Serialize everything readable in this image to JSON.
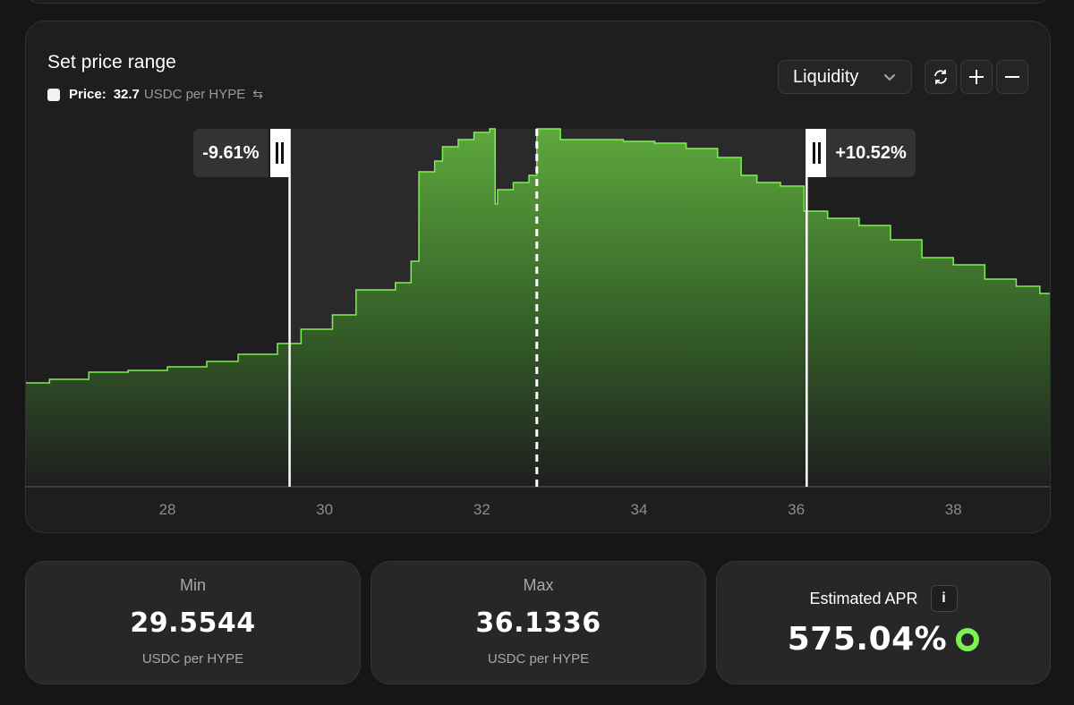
{
  "range_card": {
    "title": "Set price range",
    "price_label": "Price:",
    "price_value": "32.7",
    "price_unit": "USDC per HYPE",
    "swap_icon": "swap-arrows-icon",
    "view_select": "Liquidity",
    "buttons": {
      "reset_icon": "refresh-icon",
      "zoom_in_icon": "plus-icon",
      "zoom_out_icon": "minus-icon"
    },
    "min_pct": "-9.61%",
    "max_pct": "+10.52%",
    "current_price": 32.7,
    "min_price": 29.5544,
    "max_price": 36.1336
  },
  "chart_data": {
    "type": "area",
    "xlabel": "",
    "ylabel": "",
    "xlim": [
      26.2,
      39.25
    ],
    "ylim": [
      0,
      100
    ],
    "x_ticks": [
      "28",
      "30",
      "32",
      "34",
      "36",
      "38"
    ],
    "x_tick_values": [
      28,
      30,
      32,
      34,
      36,
      38
    ],
    "series": [
      {
        "color": "#7cf14f",
        "x": [
          26.2,
          26.5,
          27.0,
          27.5,
          28.0,
          28.5,
          28.9,
          29.4,
          29.7,
          30.1,
          30.4,
          30.9,
          31.1,
          31.2,
          31.4,
          31.5,
          31.7,
          31.9,
          32.1,
          32.17,
          32.2,
          32.4,
          32.6,
          32.7,
          33.0,
          33.4,
          33.8,
          34.2,
          34.6,
          35.0,
          35.3,
          35.5,
          35.8,
          36.1,
          36.4,
          36.8,
          37.2,
          37.6,
          38.0,
          38.4,
          38.8,
          39.1,
          39.25
        ],
        "values": [
          29,
          30,
          32,
          32.5,
          33.5,
          35,
          37,
          40,
          44,
          48,
          55,
          57,
          63,
          88,
          91,
          95,
          97,
          99,
          100,
          79,
          83,
          85,
          87,
          100,
          97,
          97,
          96.5,
          96,
          94.5,
          92,
          87,
          85,
          84,
          77,
          75,
          73,
          69,
          64,
          62,
          58,
          56,
          54,
          39.5
        ]
      }
    ]
  },
  "stats": {
    "min": {
      "label": "Min",
      "value": "29.5544",
      "unit": "USDC per HYPE"
    },
    "max": {
      "label": "Max",
      "value": "36.1336",
      "unit": "USDC per HYPE"
    },
    "apr": {
      "label": "Estimated APR",
      "info": "i",
      "value": "575.04%",
      "ring_color": "#7cf14f"
    }
  }
}
